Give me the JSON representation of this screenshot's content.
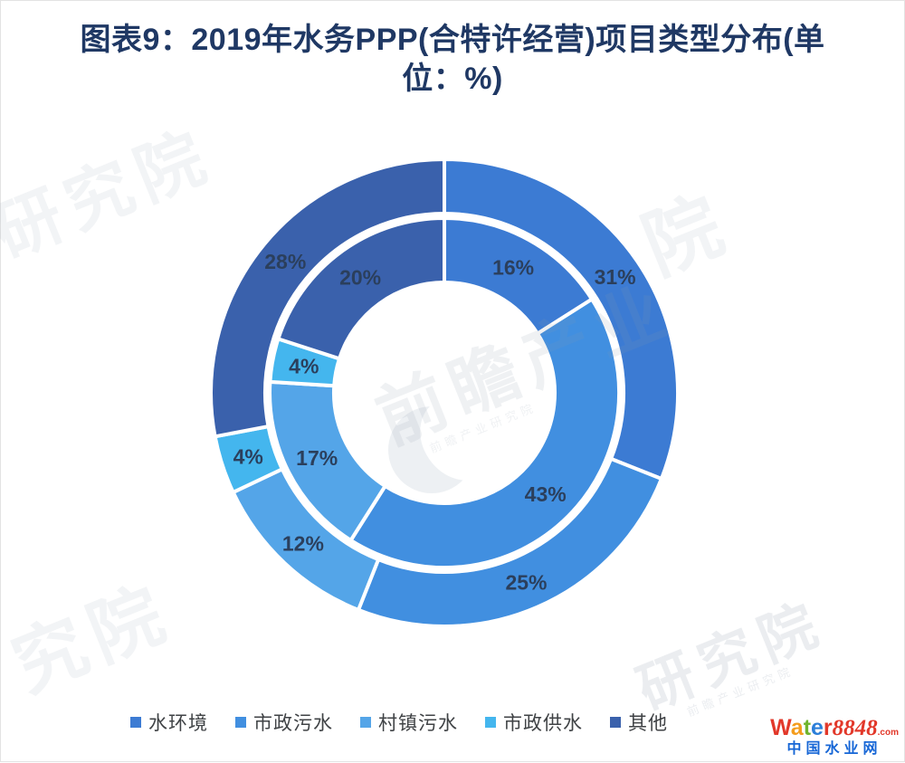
{
  "chart_data": {
    "type": "pie",
    "variant": "double-ring-donut",
    "title": "图表9：2019年水务PPP(合特许经营)项目类型分布(单位：%)",
    "unit": "%",
    "categories": [
      "水环境",
      "市政污水",
      "村镇污水",
      "市政供水",
      "其他"
    ],
    "series": [
      {
        "ring": "inner",
        "values": [
          16,
          43,
          17,
          4,
          20
        ]
      },
      {
        "ring": "outer",
        "values": [
          31,
          25,
          12,
          4,
          28
        ]
      }
    ],
    "colors": [
      "#3C7BD3",
      "#418FE0",
      "#54A5E8",
      "#44B6EE",
      "#3A61AC"
    ],
    "label_color": "#2B3F5C",
    "label_format": "{value}%",
    "legend_position": "bottom",
    "start_angle_deg": 0,
    "clockwise": true,
    "grid": false
  },
  "title_color": "#1F3864",
  "watermark": {
    "brand_text": "前瞻产业研究院",
    "tiles": [
      "研究院",
      "前瞻产业",
      "院",
      "究院",
      "研究院"
    ]
  },
  "logo": {
    "letters": [
      {
        "char": "W",
        "color": "#E2382A"
      },
      {
        "char": "a",
        "color": "#F49C1C"
      },
      {
        "char": "t",
        "color": "#6FB42D"
      },
      {
        "char": "e",
        "color": "#2B7FD9"
      },
      {
        "char": "r",
        "color": "#E2382A"
      }
    ],
    "number": "8848",
    "number_color": "#E2382A",
    "domain_suffix": ".com",
    "subtitle": "中国水业网",
    "subtitle_color": "#1666D6"
  }
}
